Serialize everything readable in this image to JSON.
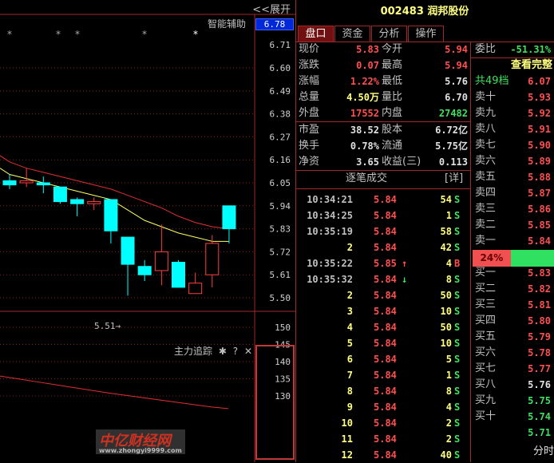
{
  "chart_panel": {
    "expand_label": "<<展开",
    "assist_label": "智能辅助",
    "current_price_badge": "6.78",
    "low_annotation": "5.51→",
    "indicator_title": "主力追踪",
    "indicator_icons": [
      "gear-icon",
      "help-icon",
      "close-icon"
    ],
    "help_glyph": "?",
    "close_glyph": "✕",
    "gear_glyph": "✱",
    "star_glyph": "*"
  },
  "chart_data": [
    {
      "type": "candlestick",
      "ylim": [
        5.45,
        6.73
      ],
      "y_ticks": [
        "6.71",
        "6.60",
        "6.49",
        "6.38",
        "6.27",
        "6.16",
        "6.05",
        "5.94",
        "5.83",
        "5.72",
        "5.61",
        "5.50"
      ],
      "grid": true,
      "candles": [
        {
          "open": 6.06,
          "close": 6.04,
          "high": 6.09,
          "low": 6.02
        },
        {
          "open": 6.05,
          "close": 6.06,
          "high": 6.12,
          "low": 6.03
        },
        {
          "open": 6.05,
          "close": 6.04,
          "high": 6.08,
          "low": 6.0
        },
        {
          "open": 6.03,
          "close": 5.96,
          "high": 6.03,
          "low": 5.95
        },
        {
          "open": 5.97,
          "close": 5.95,
          "high": 5.98,
          "low": 5.89
        },
        {
          "open": 5.95,
          "close": 5.96,
          "high": 5.98,
          "low": 5.92
        },
        {
          "open": 5.97,
          "close": 5.82,
          "high": 5.97,
          "low": 5.76
        },
        {
          "open": 5.79,
          "close": 5.66,
          "high": 5.79,
          "low": 5.51
        },
        {
          "open": 5.65,
          "close": 5.61,
          "high": 5.68,
          "low": 5.58
        },
        {
          "open": 5.63,
          "close": 5.72,
          "high": 5.85,
          "low": 5.56
        },
        {
          "open": 5.67,
          "close": 5.55,
          "high": 5.68,
          "low": 5.55
        },
        {
          "open": 5.52,
          "close": 5.57,
          "high": 5.62,
          "low": 5.52
        },
        {
          "open": 5.61,
          "close": 5.76,
          "high": 5.8,
          "low": 5.55
        },
        {
          "open": 5.94,
          "close": 5.83,
          "high": 5.94,
          "low": 5.76
        }
      ],
      "ma_series": [
        {
          "color": "#e03030",
          "values": [
            6.15,
            6.12,
            6.1,
            6.08,
            6.06,
            6.04,
            6.02,
            5.99,
            5.96,
            5.93,
            5.89,
            5.86,
            5.84,
            5.83
          ]
        },
        {
          "color": "#ffff60",
          "values": [
            6.09,
            6.07,
            6.05,
            6.03,
            6.01,
            5.99,
            5.97,
            5.92,
            5.87,
            5.84,
            5.81,
            5.79,
            5.77,
            5.77
          ]
        }
      ],
      "star_markers_at": [
        0,
        3,
        4,
        8,
        11
      ],
      "up_color": "#ff4040",
      "down_color": "#00ffff"
    },
    {
      "type": "line",
      "ylim": [
        127,
        154
      ],
      "y_ticks": [
        "150",
        "145",
        "140",
        "135",
        "130"
      ],
      "grid": true,
      "series": [
        {
          "color": "#e03030",
          "values": [
            135.8,
            135,
            134.2,
            133.4,
            132.6,
            131.8,
            131,
            130.3,
            129.6,
            128.9,
            128.2,
            127.5,
            126.8,
            126.3
          ]
        }
      ]
    }
  ],
  "quote": {
    "title": "002483 润邦股份",
    "tabs": [
      {
        "label": "盘口"
      },
      {
        "label": "资金"
      },
      {
        "label": "分析"
      },
      {
        "label": "操作"
      }
    ],
    "stats": [
      {
        "l1": "现价",
        "v1": "5.83",
        "c1": "red",
        "l2": "今开",
        "v2": "5.94",
        "c2": "red"
      },
      {
        "l1": "涨跌",
        "v1": "0.07",
        "c1": "red",
        "l2": "最高",
        "v2": "5.94",
        "c2": "red"
      },
      {
        "l1": "涨幅",
        "v1": "1.22%",
        "c1": "red",
        "l2": "最低",
        "v2": "5.76",
        "c2": "white"
      },
      {
        "l1": "总量",
        "v1": "4.50万",
        "c1": "yellow",
        "l2": "量比",
        "v2": "6.70",
        "c2": "white"
      },
      {
        "l1": "外盘",
        "v1": "17552",
        "c1": "red",
        "l2": "内盘",
        "v2": "27482",
        "c2": "green"
      },
      {
        "l1": "市盈",
        "v1": "38.52",
        "c1": "white",
        "l2": "股本",
        "v2": "6.72亿",
        "c2": "white"
      },
      {
        "l1": "换手",
        "v1": "0.78%",
        "c1": "white",
        "l2": "流通",
        "v2": "5.75亿",
        "c2": "white"
      },
      {
        "l1": "净资",
        "v1": "3.65",
        "c1": "white",
        "l2": "收益(三)",
        "v2": "0.113",
        "c2": "white"
      }
    ],
    "trades_title": "逐笔成交",
    "trades_detail": "[详]",
    "trades": [
      {
        "t": "10:34:21",
        "p": "5.84",
        "a": "",
        "v": "54",
        "s": "S"
      },
      {
        "t": "10:34:25",
        "p": "5.84",
        "a": "",
        "v": "1",
        "s": "S"
      },
      {
        "t": "10:35:19",
        "p": "5.84",
        "a": "",
        "v": "58",
        "s": "S"
      },
      {
        "t": "2",
        "p": "5.84",
        "a": "",
        "v": "42",
        "s": "S"
      },
      {
        "t": "10:35:22",
        "p": "5.85",
        "a": "↑",
        "v": "4",
        "s": "B"
      },
      {
        "t": "10:35:32",
        "p": "5.84",
        "a": "↓",
        "v": "8",
        "s": "S"
      },
      {
        "t": "2",
        "p": "5.84",
        "a": "",
        "v": "50",
        "s": "S"
      },
      {
        "t": "3",
        "p": "5.84",
        "a": "",
        "v": "10",
        "s": "S"
      },
      {
        "t": "4",
        "p": "5.84",
        "a": "",
        "v": "50",
        "s": "S"
      },
      {
        "t": "5",
        "p": "5.84",
        "a": "",
        "v": "10",
        "s": "S"
      },
      {
        "t": "6",
        "p": "5.84",
        "a": "",
        "v": "5",
        "s": "S"
      },
      {
        "t": "7",
        "p": "5.84",
        "a": "",
        "v": "1",
        "s": "S"
      },
      {
        "t": "8",
        "p": "5.84",
        "a": "",
        "v": "8",
        "s": "S"
      },
      {
        "t": "9",
        "p": "5.84",
        "a": "",
        "v": "4",
        "s": "S"
      },
      {
        "t": "10",
        "p": "5.84",
        "a": "",
        "v": "2",
        "s": "S"
      },
      {
        "t": "11",
        "p": "5.84",
        "a": "",
        "v": "2",
        "s": "S"
      },
      {
        "t": "12",
        "p": "5.84",
        "a": "",
        "v": "40",
        "s": "S"
      }
    ],
    "order_ratio_label": "委比",
    "order_ratio": "-51.31%",
    "view_full": "查看完整",
    "levels_label": "共49档",
    "levels_price": "6.07",
    "asks": [
      {
        "l": "卖十",
        "p": "5.93",
        "c": "red"
      },
      {
        "l": "卖九",
        "p": "5.92",
        "c": "red"
      },
      {
        "l": "卖八",
        "p": "5.91",
        "c": "red"
      },
      {
        "l": "卖七",
        "p": "5.90",
        "c": "red"
      },
      {
        "l": "卖六",
        "p": "5.89",
        "c": "red"
      },
      {
        "l": "卖五",
        "p": "5.88",
        "c": "red"
      },
      {
        "l": "卖四",
        "p": "5.87",
        "c": "red"
      },
      {
        "l": "卖三",
        "p": "5.86",
        "c": "red"
      },
      {
        "l": "卖二",
        "p": "5.85",
        "c": "red"
      },
      {
        "l": "卖一",
        "p": "5.84",
        "c": "red"
      }
    ],
    "buy_ratio": "24%",
    "buy_ratio_value": 24,
    "bids": [
      {
        "l": "买一",
        "p": "5.83",
        "c": "red"
      },
      {
        "l": "买二",
        "p": "5.82",
        "c": "red"
      },
      {
        "l": "买三",
        "p": "5.81",
        "c": "red"
      },
      {
        "l": "买四",
        "p": "5.80",
        "c": "red"
      },
      {
        "l": "买五",
        "p": "5.79",
        "c": "red"
      },
      {
        "l": "买六",
        "p": "5.78",
        "c": "red"
      },
      {
        "l": "买七",
        "p": "5.77",
        "c": "red"
      },
      {
        "l": "买八",
        "p": "5.76",
        "c": "white"
      },
      {
        "l": "买九",
        "p": "5.75",
        "c": "green"
      },
      {
        "l": "买十",
        "p": "5.74",
        "c": "green"
      }
    ],
    "bottom_price": "5.71",
    "timeshare_label": "分时"
  },
  "watermark": {
    "brand": "中亿财经网",
    "url": "www.zhongyi9999.com"
  }
}
